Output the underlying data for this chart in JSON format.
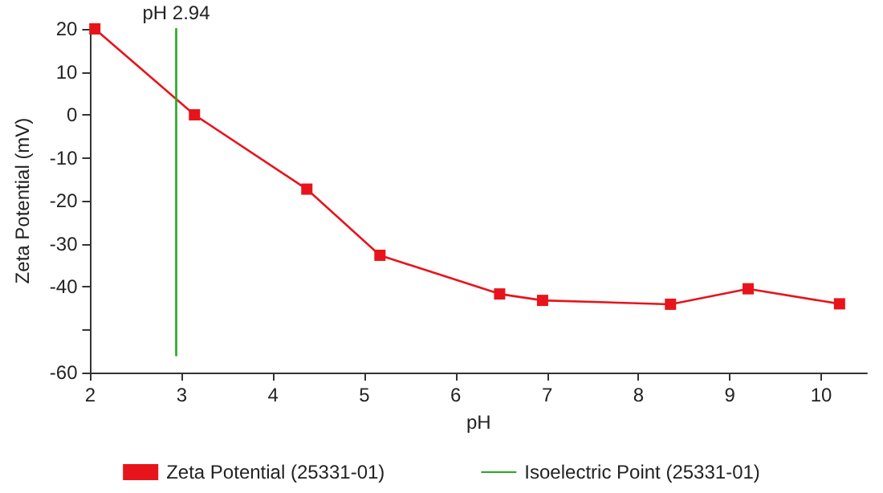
{
  "chart_data": {
    "type": "line",
    "xlabel": "pH",
    "ylabel": "Zeta Potential (mV)",
    "xlim": [
      2,
      10.5
    ],
    "xticks": [
      2,
      3,
      4,
      5,
      6,
      7,
      8,
      9,
      10
    ],
    "ylim": [
      -60,
      20
    ],
    "yticks": [
      20,
      10,
      0,
      -10,
      -20,
      -30,
      -40,
      {
        "value": -50,
        "label": null
      },
      -60
    ],
    "grid": false,
    "legend": "bottom",
    "series": [
      {
        "name": "Zeta Potential (25331-01)",
        "color": "#e8141b",
        "marker": "square",
        "x": [
          2.05,
          3.14,
          4.37,
          5.17,
          6.48,
          6.95,
          8.35,
          9.2,
          10.2
        ],
        "values": [
          20,
          0,
          -17.3,
          -32.7,
          -41.7,
          -43.2,
          -44.1,
          -40.5,
          -44
        ]
      },
      {
        "name": "Isoelectric Point (25331-01)",
        "color": "#22aa22",
        "marker": "none",
        "x": [
          2.94,
          2.94
        ],
        "values": [
          20,
          -56
        ]
      }
    ],
    "annotations": [
      {
        "text": "pH 2.94",
        "x": 2.94,
        "y": 20
      }
    ]
  }
}
